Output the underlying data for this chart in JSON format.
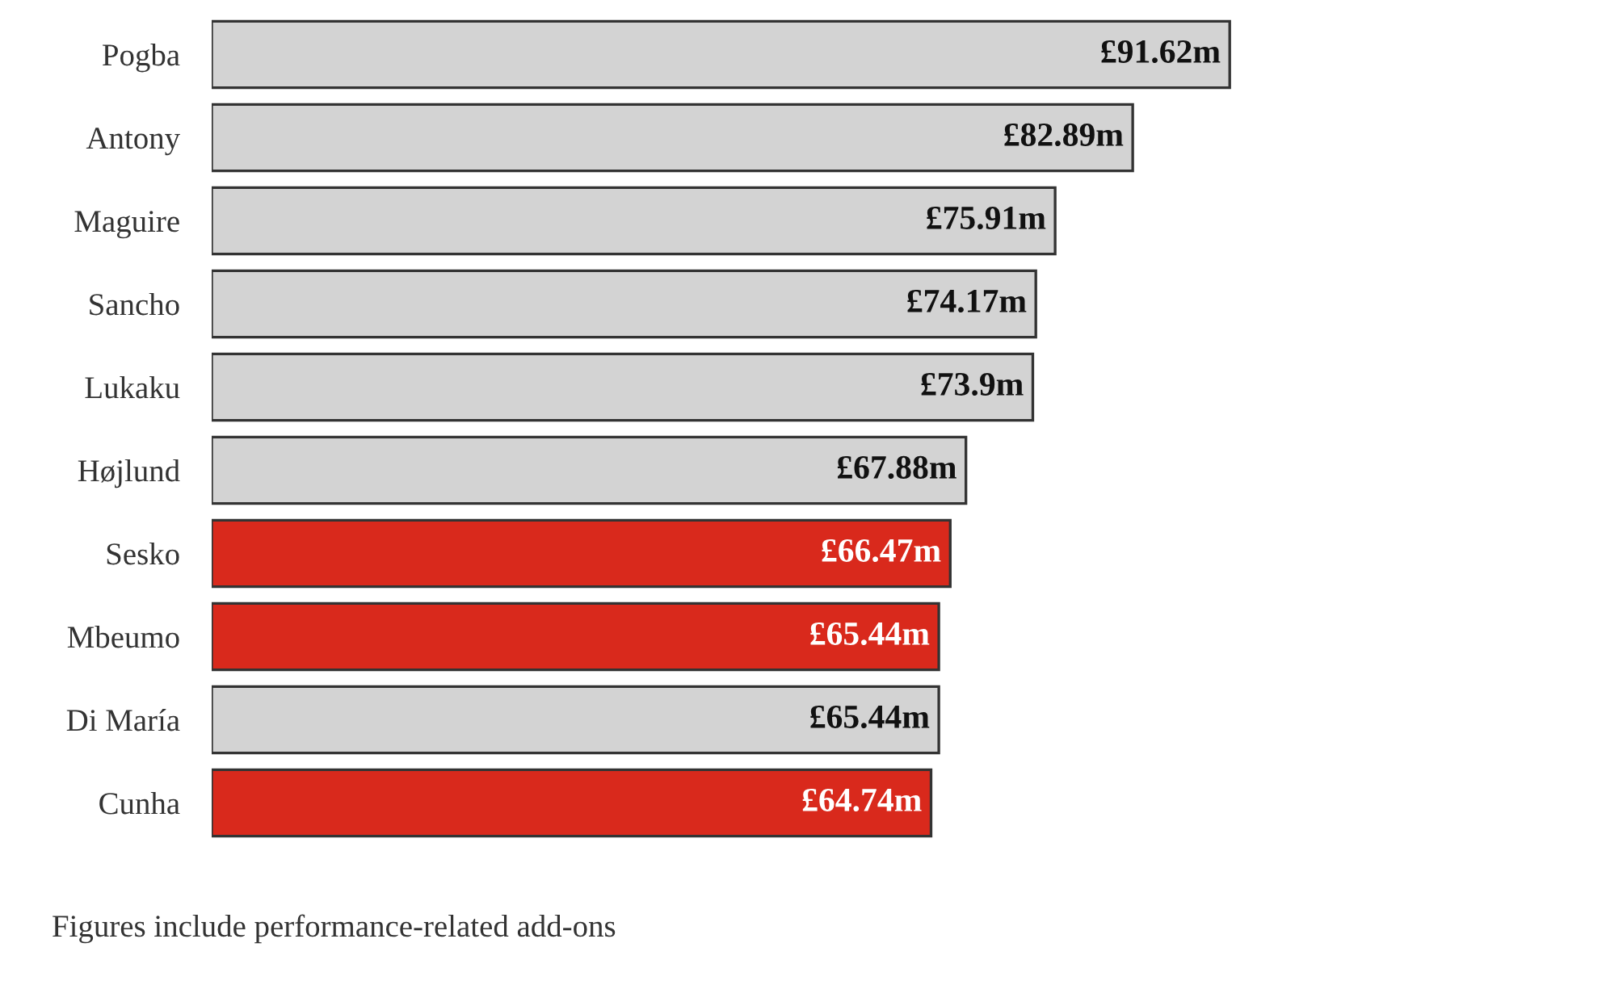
{
  "chart_data": {
    "type": "bar",
    "orientation": "horizontal",
    "categories": [
      "Pogba",
      "Antony",
      "Maguire",
      "Sancho",
      "Lukaku",
      "Højlund",
      "Sesko",
      "Mbeumo",
      "Di María",
      "Cunha"
    ],
    "values": [
      91.62,
      82.89,
      75.91,
      74.17,
      73.9,
      67.88,
      66.47,
      65.44,
      65.44,
      64.74
    ],
    "colors": [
      "#d3d3d3",
      "#d3d3d3",
      "#d3d3d3",
      "#d3d3d3",
      "#d3d3d3",
      "#d3d3d3",
      "#d9291c",
      "#d9291c",
      "#d3d3d3",
      "#d9291c"
    ],
    "value_labels": [
      "£91.62m",
      "£82.89m",
      "£75.91m",
      "£74.17m",
      "£73.9m",
      "£67.88m",
      "£66.47m",
      "£65.44m",
      "£65.44m",
      "£64.74m"
    ],
    "annotations": [
      "Figures include performance-related add-ons"
    ],
    "grid": false,
    "legend": false
  }
}
